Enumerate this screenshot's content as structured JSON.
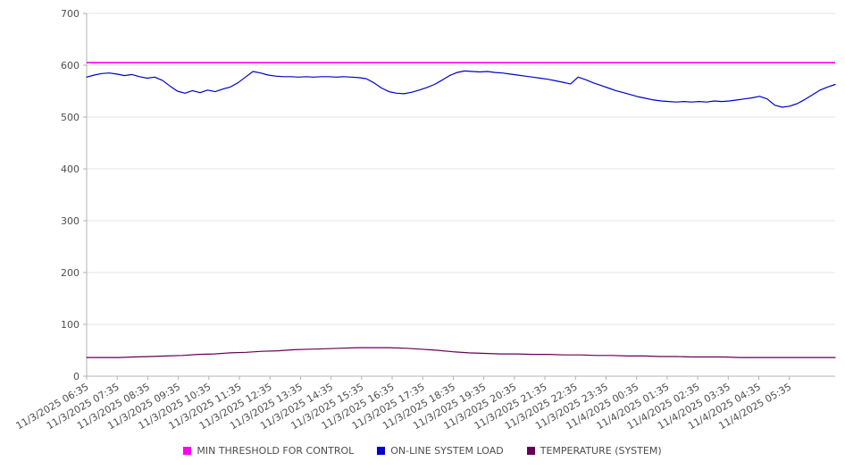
{
  "chart_data": {
    "type": "line",
    "title": "",
    "xlabel": "",
    "ylabel": "",
    "ylim": [
      0,
      700
    ],
    "yticks": [
      0,
      100,
      200,
      300,
      400,
      500,
      600,
      700
    ],
    "grid": true,
    "legend_position": "bottom",
    "x_span_hours": 24.5,
    "categories": [
      "11/3/2025 06:35",
      "11/3/2025 07:35",
      "11/3/2025 08:35",
      "11/3/2025 09:35",
      "11/3/2025 10:35",
      "11/3/2025 11:35",
      "11/3/2025 12:35",
      "11/3/2025 13:35",
      "11/3/2025 14:35",
      "11/3/2025 15:35",
      "11/3/2025 16:35",
      "11/3/2025 17:35",
      "11/3/2025 18:35",
      "11/3/2025 19:35",
      "11/3/2025 20:35",
      "11/3/2025 21:35",
      "11/3/2025 22:35",
      "11/3/2025 23:35",
      "11/4/2025 00:35",
      "11/4/2025 01:35",
      "11/4/2025 02:35",
      "11/4/2025 03:35",
      "11/4/2025 04:35",
      "11/4/2025 05:35"
    ],
    "threshold": {
      "name": "MIN THRESHOLD FOR CONTROL",
      "value": 605,
      "color": "#ff00f0"
    },
    "series": [
      {
        "name": "ON-LINE SYSTEM LOAD",
        "color": "#0000cc",
        "values": [
          577,
          581,
          584,
          585,
          583,
          580,
          582,
          578,
          575,
          577,
          571,
          560,
          550,
          546,
          551,
          547,
          552,
          549,
          554,
          558,
          566,
          577,
          588,
          585,
          581,
          579,
          578,
          578,
          577,
          578,
          577,
          578,
          578,
          577,
          578,
          577,
          576,
          574,
          566,
          556,
          549,
          546,
          545,
          548,
          552,
          557,
          563,
          571,
          580,
          586,
          589,
          588,
          587,
          588,
          586,
          585,
          583,
          581,
          579,
          577,
          575,
          573,
          570,
          567,
          564,
          577,
          572,
          566,
          561,
          556,
          551,
          547,
          543,
          539,
          536,
          533,
          531,
          530,
          529,
          530,
          529,
          530,
          529,
          531,
          530,
          531,
          533,
          535,
          537,
          540,
          535,
          523,
          519,
          521,
          526,
          534,
          543,
          552,
          558,
          563
        ]
      },
      {
        "name": "TEMPERATURE (SYSTEM)",
        "color": "#650055",
        "values": [
          36,
          36,
          36,
          37,
          38,
          39,
          40,
          42,
          43,
          45,
          46,
          48,
          49,
          51,
          52,
          53,
          54,
          55,
          55,
          55,
          54,
          52,
          50,
          47,
          45,
          44,
          43,
          43,
          42,
          42,
          41,
          41,
          40,
          40,
          39,
          39,
          38,
          38,
          37,
          37,
          37,
          36,
          36,
          36,
          36,
          36,
          36,
          36
        ]
      }
    ]
  },
  "legend": {
    "items": [
      {
        "label": "MIN THRESHOLD FOR CONTROL",
        "color": "#ff00f0"
      },
      {
        "label": "ON-LINE SYSTEM LOAD",
        "color": "#0000cc"
      },
      {
        "label": "TEMPERATURE (SYSTEM)",
        "color": "#650055"
      }
    ]
  }
}
